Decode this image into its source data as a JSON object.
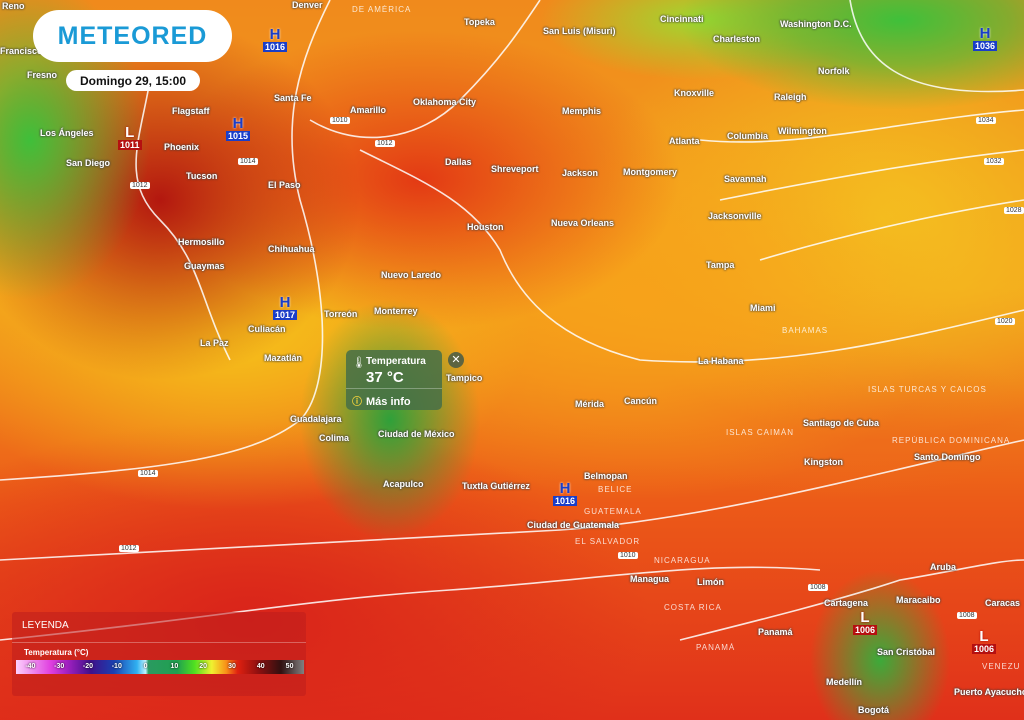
{
  "brand": {
    "logo": "METEORED",
    "accent": "#1a9ad6"
  },
  "datetime": "Domingo 29, 15:00",
  "popup": {
    "title": "Temperatura",
    "value": "37 °C",
    "more": "Más info",
    "icon": "thermometer-icon"
  },
  "legend": {
    "title": "LEYENDA",
    "subtitle": "Temperatura (°C)",
    "ticks": [
      "-40",
      "-30",
      "-20",
      "-10",
      "0",
      "10",
      "20",
      "30",
      "40",
      "50"
    ]
  },
  "cities": [
    {
      "n": "Reno"
    },
    {
      "n": "Francisco"
    },
    {
      "n": "Fresno"
    },
    {
      "n": "Los Ángeles"
    },
    {
      "n": "San Diego"
    },
    {
      "n": "Phoenix"
    },
    {
      "n": "Flagstaff"
    },
    {
      "n": "Tucson"
    },
    {
      "n": "El Paso"
    },
    {
      "n": "Hermosillo"
    },
    {
      "n": "Guaymas"
    },
    {
      "n": "Chihuahua"
    },
    {
      "n": "Culiacán"
    },
    {
      "n": "La Paz"
    },
    {
      "n": "Mazatlán"
    },
    {
      "n": "Torreón"
    },
    {
      "n": "Monterrey"
    },
    {
      "n": "Nuevo Laredo"
    },
    {
      "n": "Guadalajara"
    },
    {
      "n": "Colima"
    },
    {
      "n": "Ciudad de México"
    },
    {
      "n": "Acapulco"
    },
    {
      "n": "Tuxtla Gutiérrez"
    },
    {
      "n": "Ciudad de Guatemala"
    },
    {
      "n": "Managua"
    },
    {
      "n": "Denver"
    },
    {
      "n": "Santa Fe"
    },
    {
      "n": "Amarillo"
    },
    {
      "n": "Oklahoma City"
    },
    {
      "n": "Topeka"
    },
    {
      "n": "San Luis (Misuri)"
    },
    {
      "n": "Cincinnati"
    },
    {
      "n": "Charleston"
    },
    {
      "n": "Washington D.C."
    },
    {
      "n": "Norfolk"
    },
    {
      "n": "Raleigh"
    },
    {
      "n": "Wilmington"
    },
    {
      "n": "Columbia"
    },
    {
      "n": "Atlanta"
    },
    {
      "n": "Knoxville"
    },
    {
      "n": "Memphis"
    },
    {
      "n": "Dallas"
    },
    {
      "n": "Shreveport"
    },
    {
      "n": "Jackson"
    },
    {
      "n": "Montgomery"
    },
    {
      "n": "Savannah"
    },
    {
      "n": "Jacksonville"
    },
    {
      "n": "Houston"
    },
    {
      "n": "Nueva Orleans"
    },
    {
      "n": "Tampa"
    },
    {
      "n": "Miami"
    },
    {
      "n": "La Habana"
    },
    {
      "n": "Mérida"
    },
    {
      "n": "Cancún"
    },
    {
      "n": "Santiago de Cuba"
    },
    {
      "n": "Kingston"
    },
    {
      "n": "Santo Domingo"
    },
    {
      "n": "Belmopan"
    },
    {
      "n": "Limón"
    },
    {
      "n": "Panamá"
    },
    {
      "n": "Cartagena"
    },
    {
      "n": "Maracaibo"
    },
    {
      "n": "Caracas"
    },
    {
      "n": "San Cristóbal"
    },
    {
      "n": "Medellín"
    },
    {
      "n": "Bogotá"
    },
    {
      "n": "Puerto Ayacucho"
    },
    {
      "n": "Aruba"
    },
    {
      "n": "Tampico"
    }
  ],
  "countries": [
    "DE AMÉRICA",
    "BAHAMAS",
    "ISLAS TURCAS Y CAICOS",
    "ISLAS CAIMÁN",
    "REPÚBLICA DOMINICANA",
    "BELICE",
    "GUATEMALA",
    "EL SALVADOR",
    "NICARAGUA",
    "COSTA RICA",
    "PANAMÁ",
    "VENEZU"
  ],
  "pressure_centers": [
    {
      "type": "L",
      "value": "1011"
    },
    {
      "type": "H",
      "value": "1015"
    },
    {
      "type": "H",
      "value": "1016"
    },
    {
      "type": "H",
      "value": "1017"
    },
    {
      "type": "H",
      "value": "1016"
    },
    {
      "type": "L",
      "value": "1006"
    },
    {
      "type": "L",
      "value": "1006"
    },
    {
      "type": "H",
      "value": "1036"
    }
  ],
  "isobar_labels": [
    "1010",
    "1012",
    "1014",
    "1012",
    "1014",
    "1012",
    "1010",
    "1008",
    "1008",
    "1034",
    "1032",
    "1028",
    "1020"
  ]
}
